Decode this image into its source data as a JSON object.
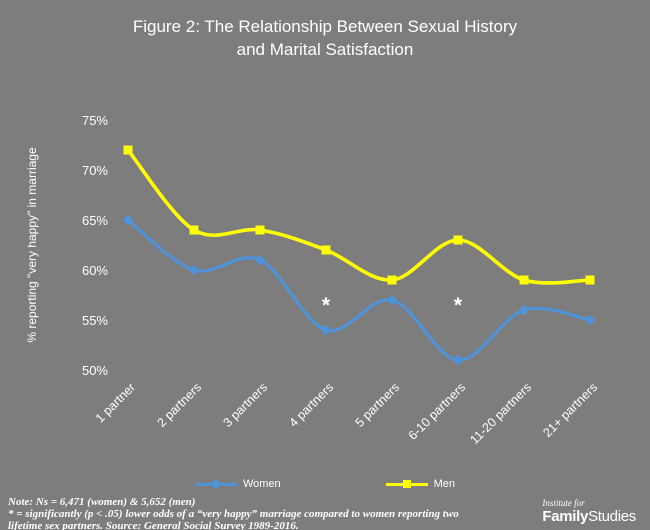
{
  "title": {
    "line1": "Figure  2: The Relationship Between Sexual History",
    "line2": "and Marital Satisfaction"
  },
  "chart_data": {
    "type": "line",
    "categories": [
      "1 partner",
      "2 partners",
      "3 partners",
      "4 partners",
      "5 partners",
      "6-10 partners",
      "11-20 partners",
      "21+ partners"
    ],
    "series": [
      {
        "name": "Women",
        "color": "#4f93d9",
        "marker": "diamond",
        "values": [
          65,
          60,
          61,
          54,
          57,
          51,
          56,
          55
        ]
      },
      {
        "name": "Men",
        "color": "#ffff00",
        "marker": "square",
        "values": [
          72,
          64,
          64,
          62,
          59,
          63,
          59,
          59
        ]
      }
    ],
    "ylabel": "% reporting \"very happy\" in marriage",
    "ylim": [
      50,
      75
    ],
    "ytick_step": 5,
    "ytick_suffix": "%",
    "grid": false,
    "legend_position": "bottom",
    "annotations": [
      {
        "x_index": 3,
        "y": 57,
        "text": "*"
      },
      {
        "x_index": 5,
        "y": 57,
        "text": "*"
      }
    ]
  },
  "footer": {
    "note_line1": "Note: Ns = 6,471 (women) & 5,652 (men)",
    "note_line2": "* = significantly (p < .05) lower odds of a “very happy” marriage compared to women reporting two lifetime sex partners.  Source: General Social Survey 1989-2016."
  },
  "logo": {
    "tagline": "Institute for",
    "name_bold": "Family",
    "name_light": "Studies"
  }
}
